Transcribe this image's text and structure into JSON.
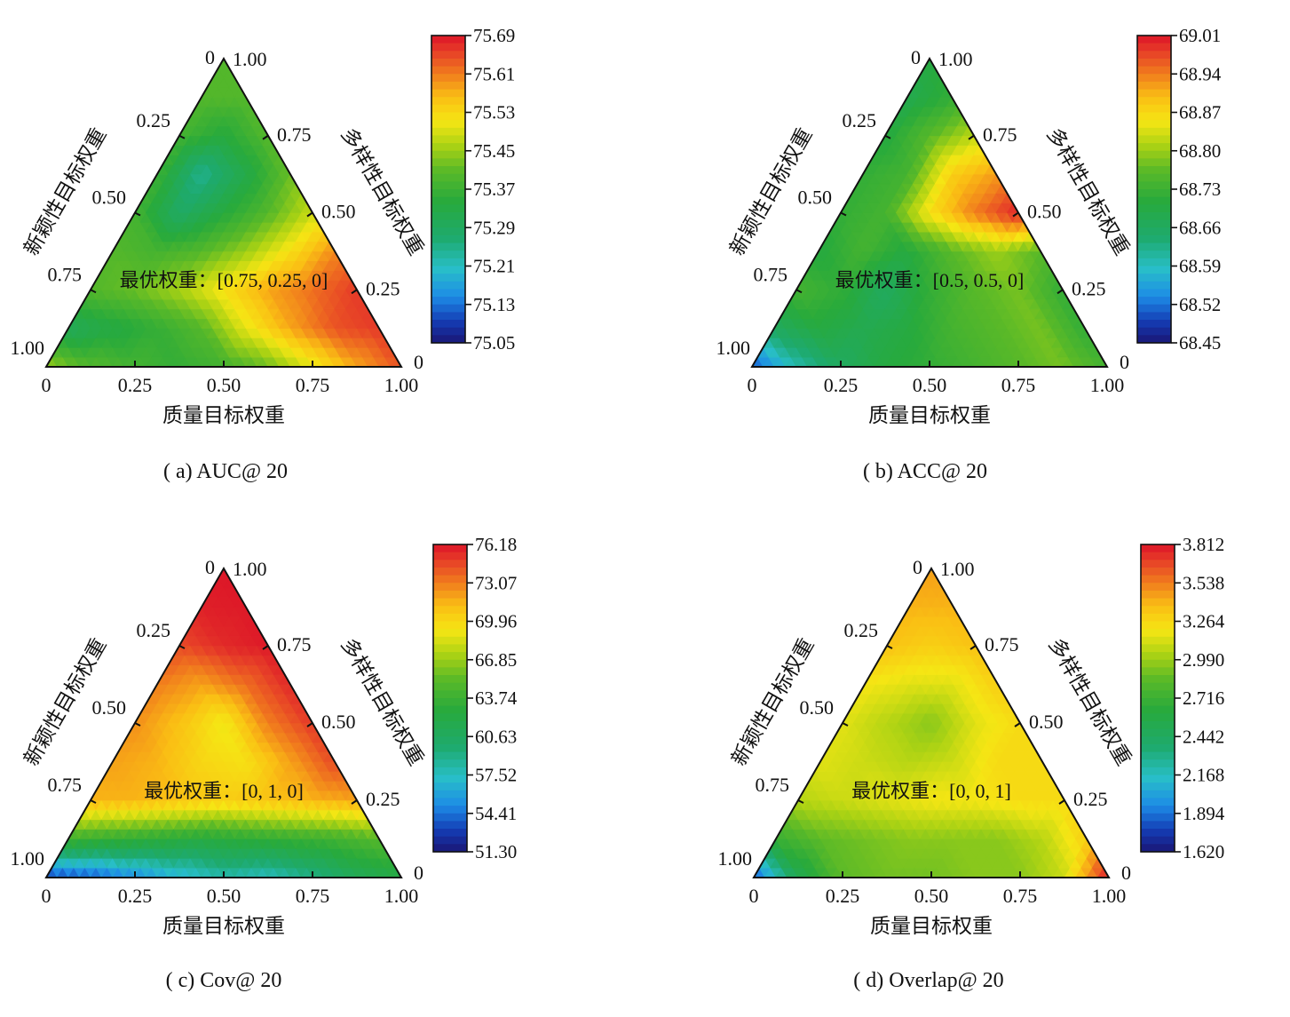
{
  "figure": {
    "note": ""
  },
  "chart_data": [
    {
      "type": "heatmap",
      "subtype": "ternary contour",
      "caption": "( a) AUC@ 20",
      "axis_labels": {
        "bottom": "质量目标权重",
        "left": "新颖性目标权重",
        "right": "多样性目标权重"
      },
      "ticks": {
        "bottom": [
          "0",
          "0.25",
          "0.50",
          "0.75",
          "1.00"
        ],
        "left": [
          "0",
          "0.25",
          "0.50",
          "0.75",
          "1.00"
        ],
        "right": [
          "0",
          "0.25",
          "0.50",
          "0.75",
          "1.00"
        ]
      },
      "annotation": "最优权重：[0.75, 0.25, 0]",
      "colorbar": {
        "min": 75.05,
        "max": 75.69,
        "ticks": [
          "75.69",
          "75.61",
          "75.53",
          "75.45",
          "75.37",
          "75.29",
          "75.21",
          "75.13",
          "75.05"
        ]
      },
      "grid_note": "",
      "values": [
        [
          75.45,
          75.4,
          75.38,
          75.36,
          75.38,
          75.42,
          75.5,
          75.58,
          75.64
        ],
        [
          75.3,
          75.33,
          75.36,
          75.4,
          75.5,
          75.58,
          75.64,
          75.66
        ],
        [
          75.4,
          75.42,
          75.46,
          75.52,
          75.58,
          75.62,
          75.66
        ],
        [
          75.4,
          75.38,
          75.4,
          75.45,
          75.52,
          75.6
        ],
        [
          75.38,
          75.28,
          75.34,
          75.4,
          75.48
        ],
        [
          75.37,
          75.24,
          75.32,
          75.42
        ],
        [
          75.38,
          75.34,
          75.4
        ],
        [
          75.4,
          75.4
        ],
        [
          75.4
        ]
      ]
    },
    {
      "type": "heatmap",
      "subtype": "ternary contour",
      "caption": "( b) ACC@ 20",
      "axis_labels": {
        "bottom": "质量目标权重",
        "left": "新颖性目标权重",
        "right": "多样性目标权重"
      },
      "ticks": {
        "bottom": [
          "0",
          "0.25",
          "0.50",
          "0.75",
          "1.00"
        ],
        "left": [
          "0",
          "0.25",
          "0.50",
          "0.75",
          "1.00"
        ],
        "right": [
          "0",
          "0.25",
          "0.50",
          "0.75",
          "1.00"
        ]
      },
      "annotation": "最优权重：[0.5, 0.5, 0]",
      "colorbar": {
        "min": 68.45,
        "max": 69.01,
        "ticks": [
          "69.01",
          "68.94",
          "68.87",
          "68.80",
          "68.73",
          "68.66",
          "68.59",
          "68.52",
          "68.45"
        ]
      },
      "grid_note": "",
      "values": [
        [
          68.5,
          68.6,
          68.66,
          68.7,
          68.72,
          68.74,
          68.76,
          68.78,
          68.74
        ],
        [
          68.66,
          68.7,
          68.68,
          68.7,
          68.74,
          68.76,
          68.78,
          68.72
        ],
        [
          68.74,
          68.72,
          68.66,
          68.72,
          68.76,
          68.78,
          68.72
        ],
        [
          68.7,
          68.74,
          68.7,
          68.76,
          68.8,
          68.76
        ],
        [
          68.72,
          68.74,
          68.86,
          68.94,
          69.0
        ],
        [
          68.72,
          68.74,
          68.88,
          68.92
        ],
        [
          68.7,
          68.76,
          68.82
        ],
        [
          68.68,
          68.72
        ],
        [
          68.7
        ]
      ]
    },
    {
      "type": "heatmap",
      "subtype": "ternary contour",
      "caption": "( c) Cov@ 20",
      "axis_labels": {
        "bottom": "质量目标权重",
        "left": "新颖性目标权重",
        "right": "多样性目标权重"
      },
      "ticks": {
        "bottom": [
          "0",
          "0.25",
          "0.50",
          "0.75",
          "1.00"
        ],
        "left": [
          "0",
          "0.25",
          "0.50",
          "0.75",
          "1.00"
        ],
        "right": [
          "0",
          "0.25",
          "0.50",
          "0.75",
          "1.00"
        ]
      },
      "annotation": "最优权重：[0, 1, 0]",
      "colorbar": {
        "min": 51.3,
        "max": 76.18,
        "ticks": [
          "76.18",
          "73.07",
          "69.96",
          "66.85",
          "63.74",
          "60.63",
          "57.52",
          "54.41",
          "51.30"
        ]
      },
      "grid_note": "",
      "values": [
        [
          53.0,
          53.5,
          55.0,
          56.5,
          58.0,
          57.5,
          59.0,
          61.0,
          62.0
        ],
        [
          64.0,
          63.5,
          63.0,
          62.5,
          63.0,
          63.5,
          64.0,
          65.0
        ],
        [
          71.5,
          71.5,
          71.0,
          70.5,
          71.0,
          71.5,
          72.0
        ],
        [
          72.0,
          71.5,
          70.0,
          69.5,
          72.0,
          74.5
        ],
        [
          72.5,
          71.0,
          69.0,
          73.0,
          75.0
        ],
        [
          73.0,
          72.0,
          73.5,
          75.5
        ],
        [
          74.5,
          75.5,
          76.0
        ],
        [
          75.8,
          76.0
        ],
        [
          76.1
        ]
      ]
    },
    {
      "type": "heatmap",
      "subtype": "ternary contour",
      "caption": "( d) Overlap@ 20",
      "axis_labels": {
        "bottom": "质量目标权重",
        "left": "新颖性目标权重",
        "right": "多样性目标权重"
      },
      "ticks": {
        "bottom": [
          "0",
          "0.25",
          "0.50",
          "0.75",
          "1.00"
        ],
        "left": [
          "0",
          "0.25",
          "0.50",
          "0.75",
          "1.00"
        ],
        "right": [
          "0",
          "0.25",
          "0.50",
          "0.75",
          "1.00"
        ]
      },
      "annotation": "最优权重：[0, 0, 1]",
      "colorbar": {
        "min": 1.62,
        "max": 3.812,
        "ticks": [
          "3.812",
          "3.538",
          "3.264",
          "2.990",
          "2.716",
          "2.442",
          "2.168",
          "1.894",
          "1.620"
        ]
      },
      "grid_note": "",
      "values": [
        [
          1.8,
          2.5,
          2.85,
          2.9,
          2.9,
          2.95,
          2.95,
          3.1,
          3.8
        ],
        [
          2.7,
          2.85,
          2.9,
          2.95,
          2.95,
          2.95,
          3.05,
          3.3
        ],
        [
          3.05,
          3.1,
          3.15,
          3.2,
          3.2,
          3.25,
          3.25
        ],
        [
          3.15,
          3.1,
          3.05,
          3.1,
          3.25,
          3.25
        ],
        [
          3.15,
          3.05,
          2.95,
          3.15,
          3.25
        ],
        [
          3.2,
          3.15,
          3.15,
          3.3
        ],
        [
          3.35,
          3.3,
          3.35
        ],
        [
          3.4,
          3.4
        ],
        [
          3.45
        ]
      ]
    }
  ]
}
